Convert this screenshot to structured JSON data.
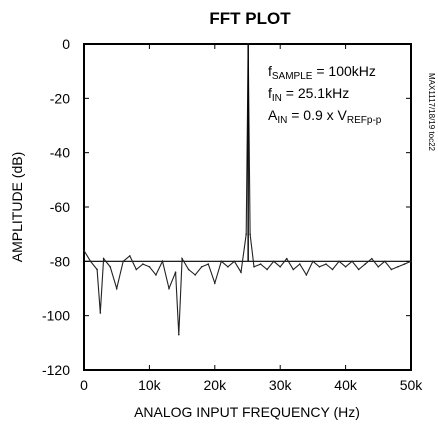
{
  "chart_data": {
    "type": "line",
    "title": "FFT PLOT",
    "xlabel": "ANALOG INPUT FREQUENCY (Hz)",
    "ylabel": "AMPLITUDE (dB)",
    "xlim": [
      0,
      50000
    ],
    "ylim": [
      -120,
      0
    ],
    "x_ticks": [
      {
        "value": 0,
        "label": "0"
      },
      {
        "value": 10000,
        "label": "10k"
      },
      {
        "value": 20000,
        "label": "20k"
      },
      {
        "value": 30000,
        "label": "30k"
      },
      {
        "value": 40000,
        "label": "40k"
      },
      {
        "value": 50000,
        "label": "50k"
      }
    ],
    "y_ticks": [
      {
        "value": 0,
        "label": "0"
      },
      {
        "value": -20,
        "label": "-20"
      },
      {
        "value": -40,
        "label": "-40"
      },
      {
        "value": -60,
        "label": "-60"
      },
      {
        "value": -80,
        "label": "-80"
      },
      {
        "value": -100,
        "label": "-100"
      },
      {
        "value": -120,
        "label": "-120"
      }
    ],
    "grid": false,
    "reference_level": -80,
    "fundamental": {
      "x": 25100,
      "y": 0
    },
    "series": [
      {
        "x": [
          0,
          1000,
          2000,
          2500,
          3000,
          4000,
          5000,
          6000,
          7000,
          8000,
          9000,
          10000,
          11000,
          12000,
          13000,
          14000,
          14500,
          15000,
          16000,
          17000,
          18000,
          19000,
          20000,
          21000,
          22000,
          23000,
          24000,
          24800,
          25100,
          25400,
          26000,
          27000,
          28000,
          29000,
          30000,
          31000,
          32000,
          33000,
          34000,
          35000,
          36000,
          37000,
          38000,
          39000,
          40000,
          41000,
          42000,
          43000,
          44000,
          45000,
          46000,
          47000,
          48000,
          49000,
          50000
        ],
        "y": [
          -76,
          -80,
          -83,
          -99,
          -79,
          -82,
          -90,
          -80,
          -78,
          -83,
          -81,
          -82,
          -85,
          -80,
          -90,
          -84,
          -107,
          -79,
          -83,
          -85,
          -82,
          -81,
          -88,
          -80,
          -82,
          -80,
          -84,
          -70,
          0,
          -70,
          -82,
          -81,
          -83,
          -80,
          -82,
          -79,
          -83,
          -81,
          -85,
          -80,
          -82,
          -81,
          -83,
          -80,
          -82,
          -80,
          -83,
          -81,
          -79,
          -82,
          -80,
          -83,
          -82,
          -81,
          -80
        ]
      }
    ],
    "annotations": [
      {
        "text": "f",
        "sub": "SAMPLE",
        "rest": " = 100kHz"
      },
      {
        "text": "f",
        "sub": "IN",
        "rest": " = 25.1kHz"
      },
      {
        "text": "A",
        "sub": "IN",
        "rest": " = 0.9 x V",
        "sub2": "REFp-p"
      }
    ],
    "side_code": "MAX1117/18/19 toc22"
  }
}
